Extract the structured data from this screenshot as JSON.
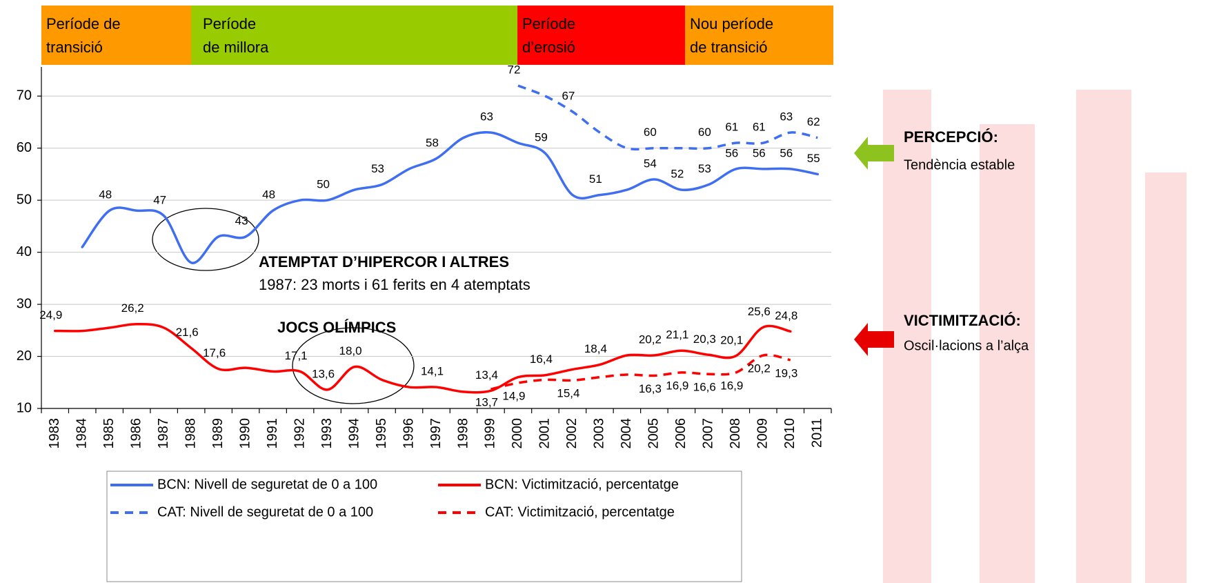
{
  "chart_data": {
    "type": "line",
    "periods": [
      {
        "lines": [
          "Període de",
          "transició"
        ],
        "color": "#ff9900"
      },
      {
        "lines": [
          "Període",
          "de millora"
        ],
        "color": "#99cc00"
      },
      {
        "lines": [
          "Període",
          "d’erosió"
        ],
        "color": "#ff0000"
      },
      {
        "lines": [
          "Nou període",
          "de transició"
        ],
        "color": "#ff9900"
      }
    ],
    "categories": [
      "1983",
      "1984",
      "1985",
      "1986",
      "1987",
      "1988",
      "1989",
      "1990",
      "1991",
      "1992",
      "1993",
      "1994",
      "1995",
      "1996",
      "1997",
      "1998",
      "1999",
      "2000",
      "2001",
      "2002",
      "2003",
      "2004",
      "2005",
      "2006",
      "2007",
      "2008",
      "2009",
      "2010",
      "2011"
    ],
    "ylim": [
      10,
      75.6
    ],
    "yticks": [
      10,
      20,
      30,
      40,
      50,
      60,
      70
    ],
    "grid": true,
    "series": [
      {
        "name": "BCN: Nivell de seguretat de 0 a 100",
        "color": "#3f6ff0",
        "dashed": false,
        "values": [
          null,
          41,
          48,
          48,
          47,
          38,
          43,
          43,
          48,
          50,
          50,
          52,
          53,
          56,
          58,
          62,
          63,
          61,
          59,
          51,
          51,
          52,
          54,
          52,
          53,
          56,
          56,
          56,
          55
        ],
        "value_labels": [
          null,
          null,
          "48",
          null,
          "47",
          null,
          null,
          "43",
          "48",
          null,
          "50",
          null,
          "53",
          null,
          "58",
          null,
          "63",
          null,
          "59",
          null,
          "51",
          null,
          "54",
          "52",
          "53",
          "56",
          "56",
          "56",
          "55"
        ]
      },
      {
        "name": "BCN: Victimització, percentatge",
        "color": "#ff0000",
        "dashed": false,
        "values": [
          24.9,
          24.9,
          25.5,
          26.2,
          25.5,
          21.6,
          17.6,
          17.8,
          17.1,
          17.1,
          13.6,
          18.0,
          15.5,
          14.1,
          14.1,
          13.2,
          13.4,
          16.0,
          16.4,
          17.5,
          18.4,
          20.2,
          20.2,
          21.1,
          20.3,
          20.1,
          25.6,
          24.8,
          null
        ],
        "value_labels": [
          "24,9",
          null,
          null,
          "26,2",
          null,
          "21,6",
          "17,6",
          null,
          null,
          "17,1",
          "13,6",
          "18,0",
          null,
          null,
          "14,1",
          null,
          "13,4",
          null,
          "16,4",
          null,
          "18,4",
          null,
          "20,2",
          "21,1",
          "20,3",
          "20,1",
          "25,6",
          "24,8",
          null
        ]
      },
      {
        "name": "CAT: Nivell de seguretat de 0 a 100",
        "color": "#3f6ff0",
        "dashed": true,
        "values": [
          null,
          null,
          null,
          null,
          null,
          null,
          null,
          null,
          null,
          null,
          null,
          null,
          null,
          null,
          null,
          null,
          null,
          72,
          70,
          67,
          63,
          60,
          60,
          60,
          60,
          61,
          61,
          63,
          62
        ],
        "value_labels": [
          null,
          null,
          null,
          null,
          null,
          null,
          null,
          null,
          null,
          null,
          null,
          null,
          null,
          null,
          null,
          null,
          null,
          "72",
          null,
          "67",
          null,
          null,
          "60",
          null,
          "60",
          "61",
          "61",
          "63",
          "62"
        ]
      },
      {
        "name": "CAT: Victimització, percentatge",
        "color": "#ff0000",
        "dashed": true,
        "values": [
          null,
          null,
          null,
          null,
          null,
          null,
          null,
          null,
          null,
          null,
          null,
          null,
          null,
          null,
          null,
          null,
          13.7,
          14.9,
          15.5,
          15.4,
          16.0,
          16.5,
          16.3,
          16.9,
          16.6,
          16.9,
          20.2,
          19.3,
          null
        ],
        "value_labels": [
          null,
          null,
          null,
          null,
          null,
          null,
          null,
          null,
          null,
          null,
          null,
          null,
          null,
          null,
          null,
          null,
          "13,7",
          "14,9",
          null,
          "15,4",
          null,
          null,
          "16,3",
          "16,9",
          "16,6",
          "16,9",
          "20,2",
          "19,3",
          null
        ]
      }
    ],
    "annotations": {
      "hipercor_title": "ATEMPTAT D’HIPERCOR I ALTRES",
      "hipercor_text": "1987: 23 morts i 61 ferits en 4 atemptats",
      "olympics": "JOCS OLÍMPICS",
      "perception_title": "PERCEPCIÓ:",
      "perception_text": "Tendència estable",
      "victim_title": "VICTIMITZACIÓ:",
      "victim_text": "Oscil·lacions a l’alça"
    }
  }
}
